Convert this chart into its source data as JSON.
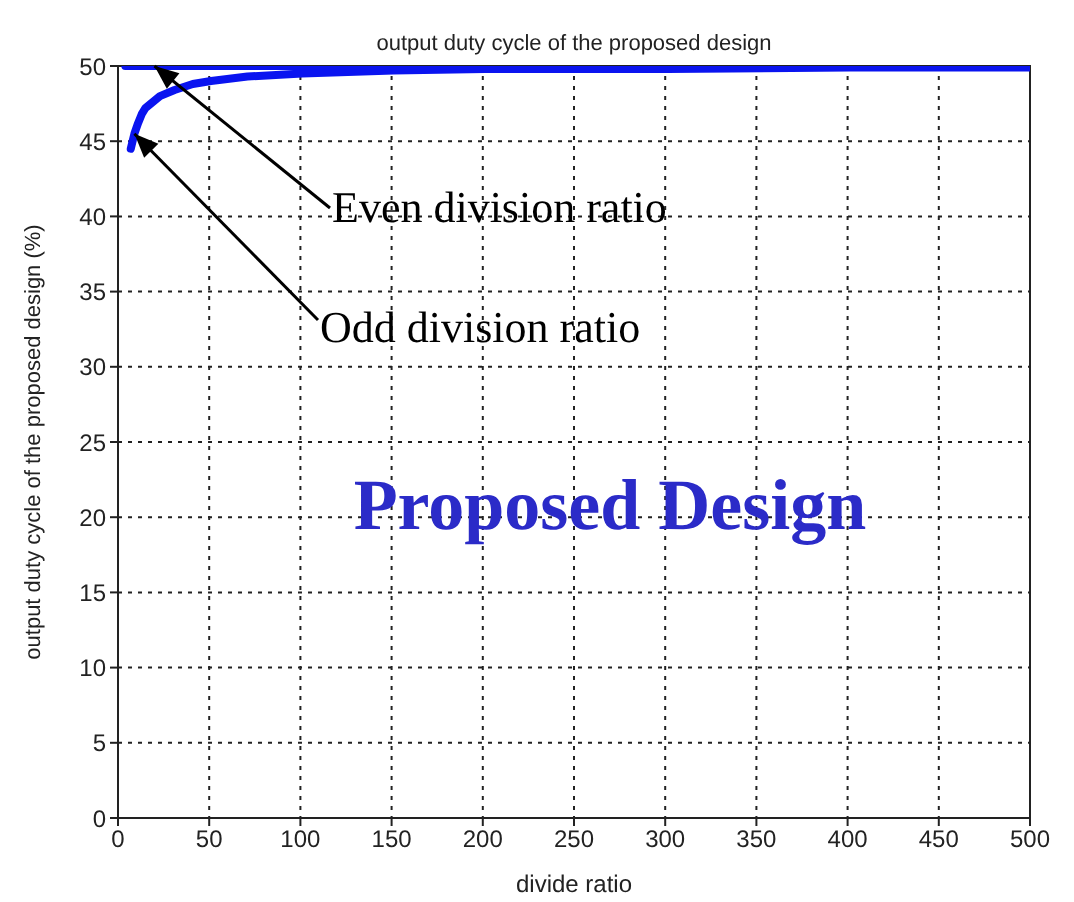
{
  "chart_data": {
    "type": "line",
    "title": "output duty cycle of the proposed design",
    "xlabel": "divide ratio",
    "ylabel": "output duty cycle of the proposed design (%)",
    "series": [
      {
        "color": "#0a14f0",
        "x": [
          7,
          9,
          11,
          13,
          15,
          19,
          23,
          31,
          41,
          51,
          71,
          101,
          151,
          201,
          301,
          401,
          500
        ],
        "values": [
          44.5,
          45.5,
          46.2,
          46.8,
          47.2,
          47.6,
          48,
          48.4,
          48.8,
          49,
          49.3,
          49.5,
          49.7,
          49.8,
          49.8,
          49.9,
          49.9
        ]
      },
      {
        "color": "#0a14f0",
        "x": [
          4,
          50,
          100,
          200,
          300,
          400,
          500
        ],
        "values": [
          50,
          50,
          50,
          50,
          50,
          50,
          50
        ]
      }
    ],
    "xlim": [
      0,
      500
    ],
    "xticks": [
      0,
      50,
      100,
      150,
      200,
      250,
      300,
      350,
      400,
      450,
      500
    ],
    "ylim": [
      0,
      50
    ],
    "yticks": [
      0,
      5,
      10,
      15,
      20,
      25,
      30,
      35,
      40,
      45,
      50
    ],
    "grid": true,
    "line_style": "solid",
    "marker": "none",
    "annotations": [
      {
        "text": "Even division ratio",
        "x": 20,
        "y": 50
      },
      {
        "text": "Odd division ratio",
        "x": 9,
        "y": 45.5
      },
      "Proposed Design"
    ]
  }
}
